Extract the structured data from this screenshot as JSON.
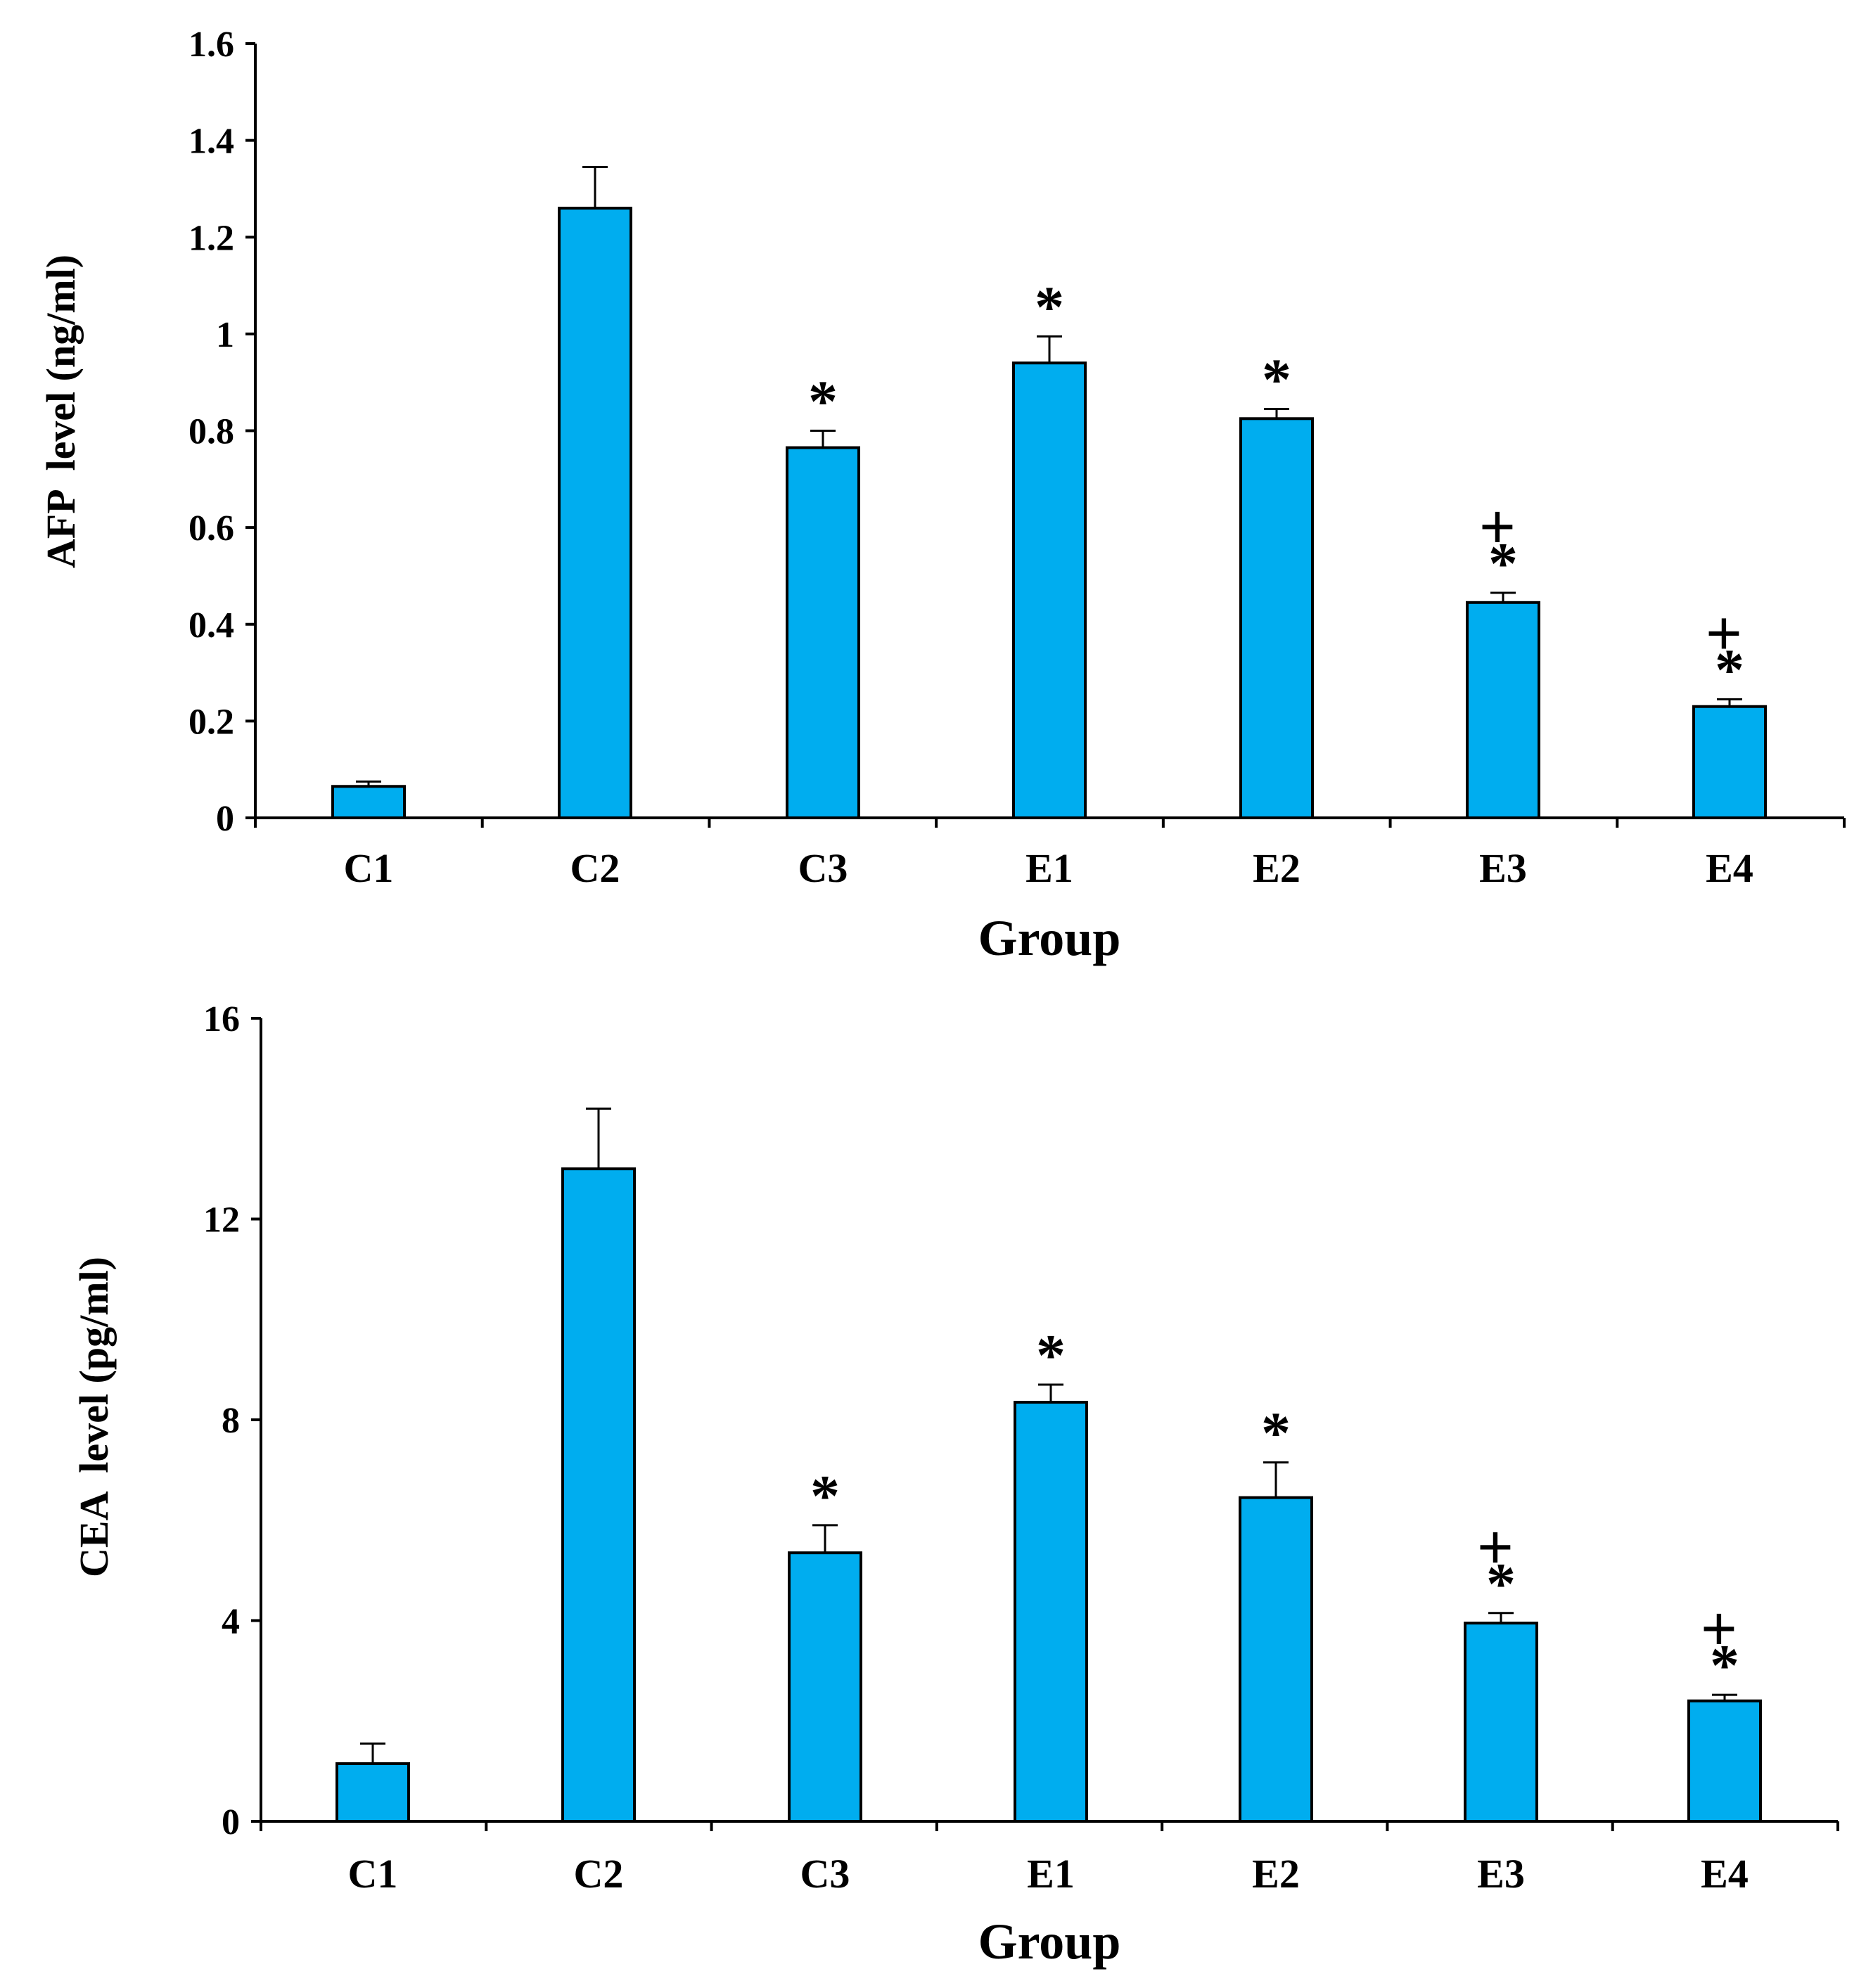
{
  "chart_data": [
    {
      "type": "bar",
      "title": "",
      "xlabel": "Group",
      "ylabel": "AFP  level (ng/ml)",
      "ylim": [
        0,
        1.6
      ],
      "yticks": [
        0,
        0.2,
        0.4,
        0.6,
        0.8,
        1,
        1.2,
        1.4,
        1.6
      ],
      "ytick_labels": [
        "0",
        "0.2",
        "0.4",
        "0.6",
        "0.8",
        "1",
        "1.2",
        "1.4",
        "1.6"
      ],
      "categories": [
        "C1",
        "C2",
        "C3",
        "E1",
        "E2",
        "E3",
        "E4"
      ],
      "values": [
        0.065,
        1.26,
        0.765,
        0.94,
        0.825,
        0.445,
        0.23
      ],
      "errors": [
        0.01,
        0.085,
        0.035,
        0.055,
        0.02,
        0.02,
        0.015
      ],
      "significance": [
        "",
        "",
        "*",
        "*",
        "*",
        "*",
        "*"
      ],
      "plus_marks": [
        "",
        "",
        "",
        "",
        "",
        "+",
        "+"
      ],
      "bar_color": "#00adef"
    },
    {
      "type": "bar",
      "title": "",
      "xlabel": "Group",
      "ylabel": "CEA  level (pg/ml)",
      "ylim": [
        0,
        16
      ],
      "yticks": [
        0,
        4,
        8,
        12,
        16
      ],
      "ytick_labels": [
        "0",
        "4",
        "8",
        "12",
        "16"
      ],
      "categories": [
        "C1",
        "C2",
        "C3",
        "E1",
        "E2",
        "E3",
        "E4"
      ],
      "values": [
        1.15,
        13.0,
        5.35,
        8.35,
        6.45,
        3.95,
        2.4
      ],
      "errors": [
        0.4,
        1.2,
        0.55,
        0.35,
        0.7,
        0.2,
        0.12
      ],
      "significance": [
        "",
        "",
        "*",
        "*",
        "*",
        "*",
        "*"
      ],
      "plus_marks": [
        "",
        "",
        "",
        "",
        "",
        "+",
        "+"
      ],
      "bar_color": "#00adef"
    }
  ]
}
